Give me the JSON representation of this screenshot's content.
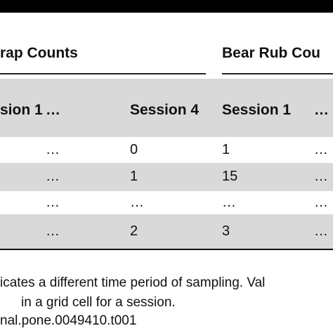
{
  "table": {
    "group_headers": [
      "rap Counts",
      "Bear Rub Cou"
    ],
    "columns": [
      "sion 1",
      "…",
      "Session 4",
      "Session 1",
      "…"
    ],
    "rows": [
      [
        "…",
        "0",
        "1",
        "…"
      ],
      [
        "…",
        "1",
        "15",
        "…"
      ],
      [
        "…",
        "…",
        "…",
        "…"
      ],
      [
        "…",
        "2",
        "3",
        "…"
      ]
    ]
  },
  "footnotes": [
    "icates a different time period of sampling. Val",
    "in a grid cell for a session.",
    "nal.pone.0049410.t001"
  ]
}
